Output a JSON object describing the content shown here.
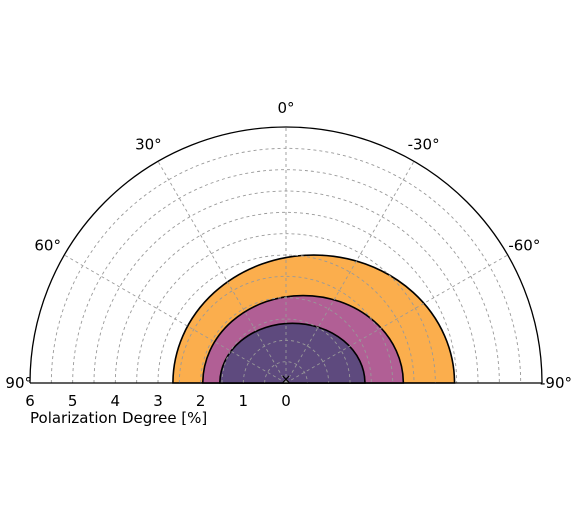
{
  "chart_data": {
    "type": "polar-semicircle-contour",
    "theta_ticks": [
      "90°",
      "60°",
      "30°",
      "0°",
      "-30°",
      "-60°",
      "-90°"
    ],
    "theta_tick_values_deg": [
      90,
      60,
      30,
      0,
      -30,
      -60,
      -90
    ],
    "r_ticks": [
      "6",
      "5",
      "4",
      "3",
      "2",
      "1",
      "0"
    ],
    "r_tick_values": [
      6,
      5,
      4,
      3,
      2,
      1,
      0
    ],
    "rlim": [
      0,
      6
    ],
    "thetalim_deg": [
      -90,
      90
    ],
    "r_label": "Polarization Degree [%]",
    "grid": true,
    "grid_style": "dashed",
    "marker": {
      "r": 0.1,
      "theta_deg": 0,
      "symbol": "×"
    },
    "regions": [
      {
        "level": "outer",
        "color": "#fbae4d",
        "center": {
          "r": 0.65,
          "theta_deg": -90
        },
        "semi_axes": {
          "horizontal": 3.3,
          "vertical": 3.0
        }
      },
      {
        "level": "middle",
        "color": "#b15f95",
        "center": {
          "r": 0.4,
          "theta_deg": -90
        },
        "semi_axes": {
          "horizontal": 2.35,
          "vertical": 2.05
        }
      },
      {
        "level": "inner",
        "color": "#5e4a7e",
        "center": {
          "r": 0.15,
          "theta_deg": -90
        },
        "semi_axes": {
          "horizontal": 1.7,
          "vertical": 1.4
        }
      }
    ]
  }
}
